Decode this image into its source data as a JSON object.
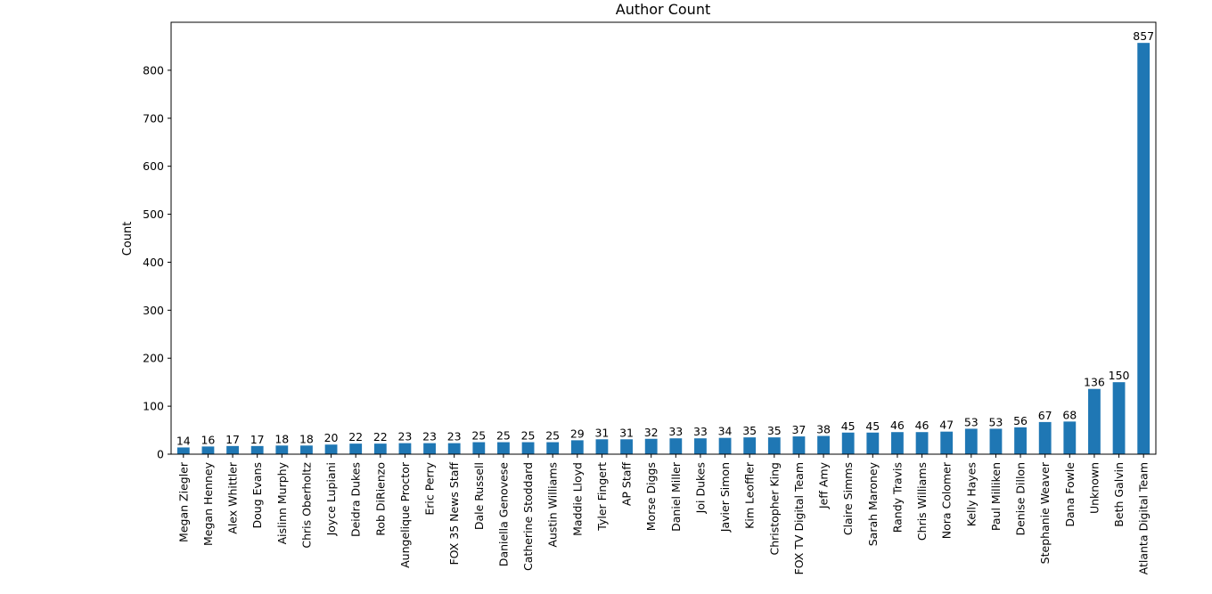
{
  "chart_data": {
    "type": "bar",
    "title": "Author Count",
    "xlabel": "",
    "ylabel": "Count",
    "ylim": [
      0,
      900
    ],
    "yticks": [
      0,
      100,
      200,
      300,
      400,
      500,
      600,
      700,
      800
    ],
    "grid": false,
    "bar_color": "#1f77b4",
    "categories": [
      "Megan Ziegler",
      "Megan Henney",
      "Alex Whittler",
      "Doug Evans",
      "Aislinn Murphy",
      "Chris Oberholtz",
      "Joyce Lupiani",
      "Deidra Dukes",
      "Rob DiRienzo",
      "Aungelique Proctor",
      "Eric Perry",
      "FOX 35 News Staff",
      "Dale Russell",
      "Daniella Genovese",
      "Catherine Stoddard",
      "Austin Williams",
      "Maddie Lloyd",
      "Tyler Fingert",
      "AP Staff",
      "Morse Diggs",
      "Daniel Miller",
      "Joi Dukes",
      "Javier Simon",
      "Kim Leoffler",
      "Christopher King",
      "FOX TV Digital Team",
      "Jeff Amy",
      "Claire Simms",
      "Sarah Maroney",
      "Randy Travis",
      "Chris Williams",
      "Nora Colomer",
      "Kelly Hayes",
      "Paul Milliken",
      "Denise Dillon",
      "Stephanie Weaver",
      "Dana Fowle",
      "Unknown",
      "Beth Galvin",
      "Atlanta Digital Team"
    ],
    "values": [
      14,
      16,
      17,
      17,
      18,
      18,
      20,
      22,
      22,
      23,
      23,
      23,
      25,
      25,
      25,
      25,
      29,
      31,
      31,
      32,
      33,
      33,
      34,
      35,
      35,
      37,
      38,
      45,
      45,
      46,
      46,
      47,
      53,
      53,
      56,
      67,
      68,
      136,
      150,
      857
    ]
  }
}
